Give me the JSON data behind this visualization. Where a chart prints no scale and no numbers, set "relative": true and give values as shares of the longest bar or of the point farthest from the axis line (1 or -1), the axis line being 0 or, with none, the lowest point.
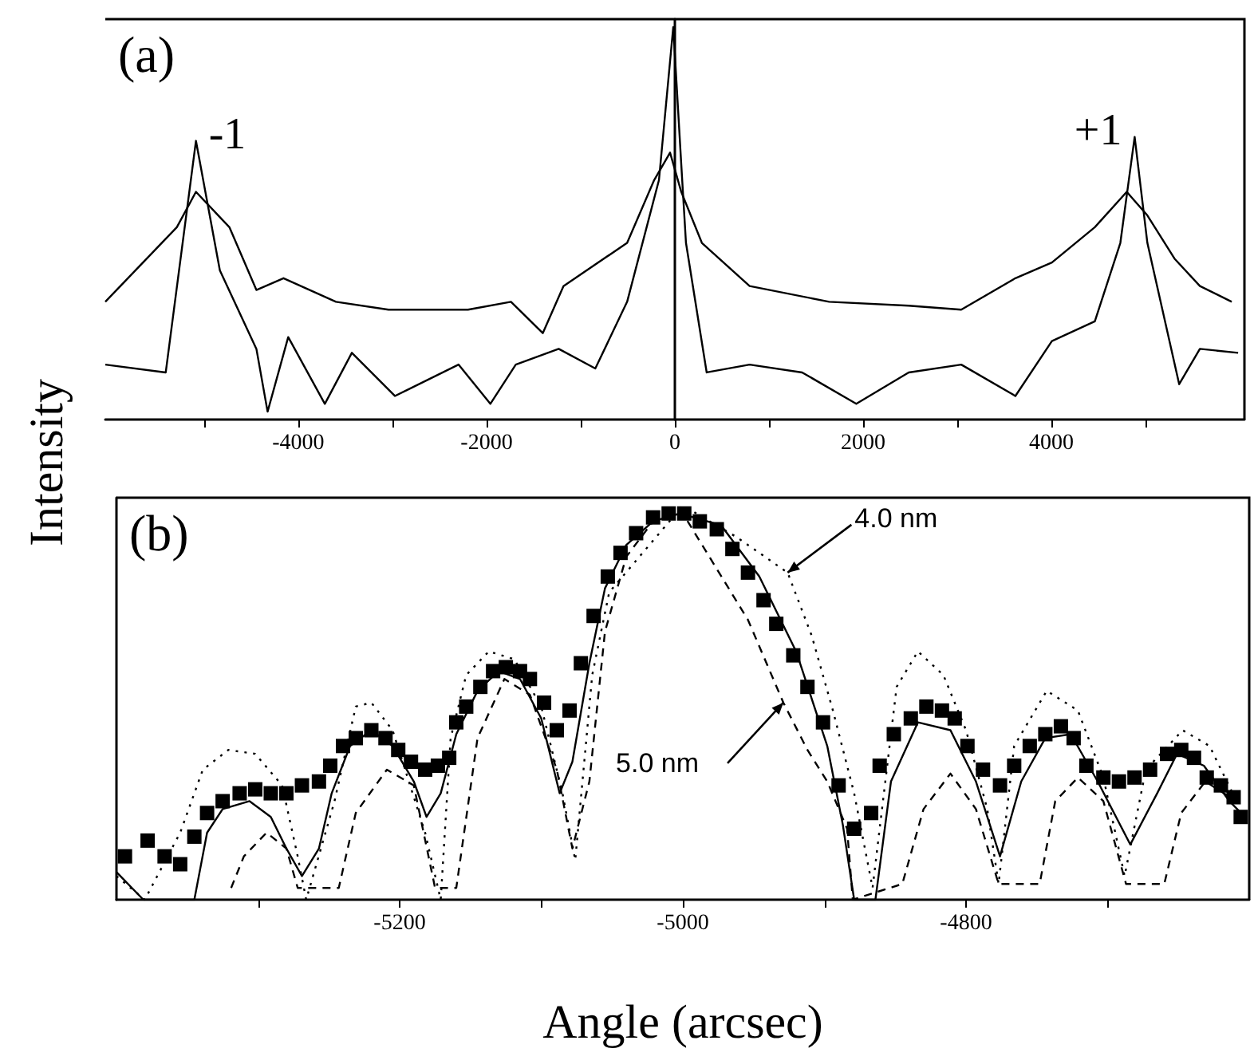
{
  "chart_data": [
    {
      "type": "line",
      "title": "(a)",
      "ylabel": "Intensity",
      "relative": true,
      "xlim": [
        -6050,
        6050
      ],
      "xticks": [
        {
          "value": -5000,
          "label": null
        },
        -4000,
        {
          "value": -3000,
          "label": null
        },
        -2000,
        {
          "value": -1000,
          "label": null
        },
        0,
        {
          "value": 1000,
          "label": null
        },
        2000,
        {
          "value": 3000,
          "label": null
        },
        4000,
        {
          "value": 5000,
          "label": null
        }
      ],
      "annotations": [
        {
          "text": "-1",
          "x": -5087,
          "y": 0.71
        },
        {
          "text": "+1",
          "x": 4884,
          "y": 0.72
        }
      ],
      "series": [
        {
          "color": "#000000",
          "x": [
            -6050,
            -5290,
            -5087,
            -4732,
            -4445,
            -4157,
            -3600,
            -3042,
            -2197,
            -1741,
            -1403,
            -1183,
            -507,
            -220,
            -51,
            68,
            287,
            794,
            1639,
            2484,
            3042,
            3617,
            4005,
            4461,
            4800,
            5019,
            5307,
            5577,
            5915
          ],
          "values": [
            0.3,
            0.49,
            0.58,
            0.49,
            0.33,
            0.36,
            0.3,
            0.28,
            0.28,
            0.3,
            0.22,
            0.34,
            0.45,
            0.61,
            0.68,
            0.58,
            0.45,
            0.34,
            0.3,
            0.29,
            0.28,
            0.36,
            0.4,
            0.49,
            0.58,
            0.52,
            0.41,
            0.34,
            0.3
          ]
        },
        {
          "color": "#000000",
          "x": [
            -6050,
            -5408,
            -5087,
            -4833,
            -4445,
            -4326,
            -4107,
            -3718,
            -3431,
            -2974,
            -2298,
            -1960,
            -1690,
            -1234,
            -845,
            -507,
            -169,
            -17,
            68,
            118,
            338,
            794,
            1352,
            1927,
            2484,
            3042,
            3617,
            4005,
            4461,
            4732,
            4884,
            5019,
            5357,
            5577,
            5983
          ],
          "values": [
            0.14,
            0.12,
            0.71,
            0.38,
            0.18,
            0.02,
            0.21,
            0.04,
            0.17,
            0.06,
            0.14,
            0.04,
            0.14,
            0.18,
            0.13,
            0.3,
            0.61,
            1.0,
            0.65,
            0.45,
            0.12,
            0.14,
            0.12,
            0.04,
            0.12,
            0.14,
            0.06,
            0.2,
            0.25,
            0.45,
            0.72,
            0.45,
            0.09,
            0.18,
            0.17
          ]
        }
      ]
    },
    {
      "type": "line",
      "title": "(b)",
      "xlabel": "Angle (arcsec)",
      "relative": true,
      "xlim": [
        -5400,
        -4600
      ],
      "xticks": [
        {
          "value": -5300,
          "label": null
        },
        -5200,
        {
          "value": -5100,
          "label": null
        },
        -5000,
        {
          "value": -4900,
          "label": null
        },
        -4800,
        {
          "value": -4700,
          "label": null
        }
      ],
      "annotations": [
        {
          "text": "4.0 nm",
          "x": -4926,
          "y": 0.83
        },
        {
          "text": "5.0 nm",
          "x": -4929,
          "y": 0.5
        }
      ],
      "series": [
        {
          "type": "scatter",
          "marker": "square",
          "color": "#000000",
          "x": [
            -5394,
            -5378,
            -5366,
            -5355,
            -5345,
            -5336,
            -5325,
            -5313,
            -5302,
            -5291,
            -5280,
            -5269,
            -5257,
            -5249,
            -5240,
            -5231,
            -5220,
            -5210,
            -5201,
            -5192,
            -5182,
            -5173,
            -5165,
            -5160,
            -5153,
            -5143,
            -5134,
            -5125,
            -5115,
            -5108,
            -5098,
            -5089,
            -5080,
            -5072,
            -5063,
            -5053,
            -5044,
            -5033,
            -5021,
            -5010,
            -4999,
            -4988,
            -4976,
            -4965,
            -4954,
            -4943,
            -4934,
            -4922,
            -4912,
            -4901,
            -4890,
            -4879,
            -4867,
            -4861,
            -4851,
            -4839,
            -4828,
            -4817,
            -4808,
            -4799,
            -4788,
            -4776,
            -4766,
            -4755,
            -4744,
            -4733,
            -4724,
            -4715,
            -4703,
            -4692,
            -4681,
            -4670,
            -4658,
            -4648,
            -4639,
            -4630,
            -4620,
            -4611,
            -4606
          ],
          "values": [
            0.11,
            0.15,
            0.11,
            0.09,
            0.16,
            0.22,
            0.25,
            0.27,
            0.28,
            0.27,
            0.27,
            0.29,
            0.3,
            0.34,
            0.39,
            0.41,
            0.43,
            0.41,
            0.38,
            0.35,
            0.33,
            0.34,
            0.36,
            0.45,
            0.49,
            0.54,
            0.58,
            0.59,
            0.58,
            0.56,
            0.5,
            0.43,
            0.48,
            0.6,
            0.72,
            0.82,
            0.88,
            0.93,
            0.97,
            0.98,
            0.98,
            0.96,
            0.94,
            0.89,
            0.83,
            0.76,
            0.7,
            0.62,
            0.54,
            0.45,
            0.29,
            0.18,
            0.22,
            0.34,
            0.42,
            0.46,
            0.49,
            0.48,
            0.46,
            0.39,
            0.33,
            0.29,
            0.34,
            0.39,
            0.42,
            0.44,
            0.41,
            0.34,
            0.31,
            0.3,
            0.31,
            0.33,
            0.37,
            0.38,
            0.36,
            0.31,
            0.29,
            0.26,
            0.21
          ]
        },
        {
          "type": "line",
          "line_style": "solid",
          "color": "#000000",
          "x": [
            -5400,
            -5381,
            -5345,
            -5336,
            -5325,
            -5306,
            -5291,
            -5280,
            -5269,
            -5257,
            -5248,
            -5235,
            -5220,
            -5205,
            -5190,
            -5181,
            -5171,
            -5160,
            -5145,
            -5130,
            -5115,
            -5100,
            -5087,
            -5078,
            -5066,
            -5055,
            -5040,
            -5021,
            -5002,
            -4973,
            -4946,
            -4920,
            -4898,
            -4887,
            -4879,
            -4864,
            -4853,
            -4834,
            -4811,
            -4793,
            -4776,
            -4761,
            -4744,
            -4726,
            -4707,
            -4684,
            -4665,
            -4651,
            -4632,
            -4614,
            -4603
          ],
          "values": [
            0.07,
            0.0,
            0.0,
            0.17,
            0.23,
            0.25,
            0.21,
            0.13,
            0.06,
            0.13,
            0.27,
            0.39,
            0.43,
            0.39,
            0.3,
            0.21,
            0.27,
            0.42,
            0.53,
            0.58,
            0.56,
            0.46,
            0.27,
            0.35,
            0.6,
            0.79,
            0.9,
            0.96,
            0.98,
            0.95,
            0.82,
            0.63,
            0.39,
            0.19,
            0.0,
            0.0,
            0.3,
            0.45,
            0.43,
            0.3,
            0.11,
            0.3,
            0.41,
            0.42,
            0.3,
            0.14,
            0.27,
            0.37,
            0.34,
            0.25,
            0.21
          ]
        },
        {
          "type": "line",
          "line_style": "dotted",
          "color": "#000000",
          "x": [
            -5400,
            -5380,
            -5355,
            -5339,
            -5321,
            -5302,
            -5283,
            -5272,
            -5266,
            -5246,
            -5231,
            -5220,
            -5205,
            -5182,
            -5171,
            -5164,
            -5153,
            -5137,
            -5119,
            -5100,
            -5085,
            -5076,
            -5064,
            -5052,
            -5000,
            -4962,
            -4926,
            -4909,
            -4894,
            -4879,
            -4866,
            -4861,
            -4849,
            -4834,
            -4816,
            -4800,
            -4785,
            -4777,
            -4766,
            -4743,
            -4721,
            -4703,
            -4688,
            -4673,
            -4647,
            -4628,
            -4609
          ],
          "values": [
            0.06,
            0.0,
            0.17,
            0.33,
            0.38,
            0.37,
            0.29,
            0.11,
            0.0,
            0.25,
            0.49,
            0.5,
            0.43,
            0.17,
            0.0,
            0.41,
            0.57,
            0.63,
            0.61,
            0.49,
            0.27,
            0.1,
            0.57,
            0.78,
            1.0,
            0.92,
            0.83,
            0.67,
            0.48,
            0.27,
            0.03,
            0.18,
            0.54,
            0.63,
            0.57,
            0.43,
            0.23,
            0.04,
            0.39,
            0.53,
            0.48,
            0.31,
            0.06,
            0.33,
            0.43,
            0.39,
            0.25
          ]
        },
        {
          "type": "line",
          "line_style": "dashed",
          "color": "#000000",
          "x": [
            -5319,
            -5310,
            -5294,
            -5280,
            -5272,
            -5243,
            -5231,
            -5209,
            -5190,
            -5175,
            -5160,
            -5145,
            -5126,
            -5108,
            -5089,
            -5078,
            -5066,
            -5055,
            -5040,
            -5021,
            -5000,
            -4954,
            -4929,
            -4912,
            -4898,
            -4884,
            -4880,
            -4845,
            -4830,
            -4811,
            -4793,
            -4777,
            -4748,
            -4737,
            -4721,
            -4703,
            -4687,
            -4660,
            -4648,
            -4631,
            -4609
          ],
          "values": [
            0.03,
            0.11,
            0.17,
            0.13,
            0.03,
            0.03,
            0.22,
            0.33,
            0.29,
            0.03,
            0.03,
            0.41,
            0.56,
            0.52,
            0.33,
            0.13,
            0.3,
            0.68,
            0.87,
            0.96,
            0.98,
            0.71,
            0.5,
            0.38,
            0.3,
            0.18,
            0.0,
            0.04,
            0.23,
            0.32,
            0.23,
            0.04,
            0.04,
            0.25,
            0.31,
            0.25,
            0.04,
            0.04,
            0.22,
            0.3,
            0.25
          ]
        }
      ]
    }
  ]
}
